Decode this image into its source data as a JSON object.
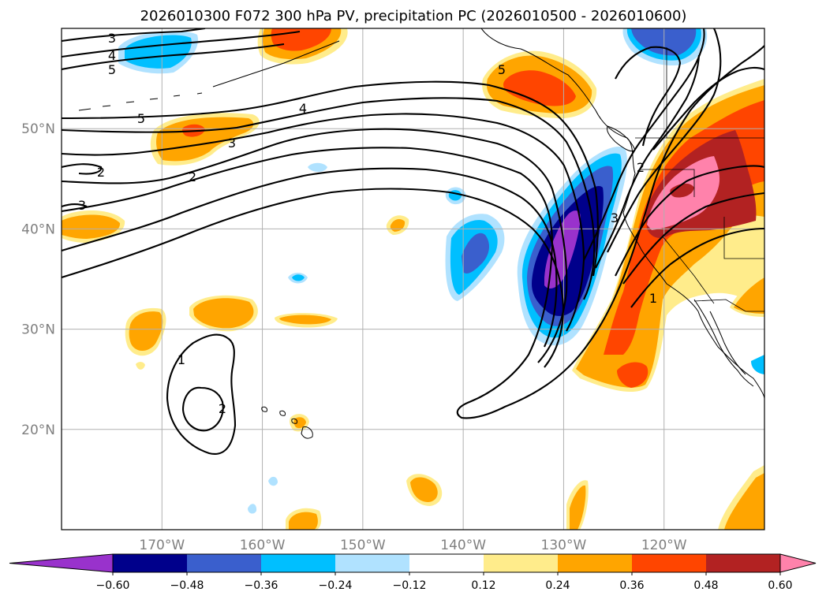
{
  "chart_data": {
    "type": "map-contour",
    "title": "2026010300 F072 300 hPa PV, precipitation PC (2026010500 - 2026010600)",
    "projection": "PlateCarree",
    "extent": {
      "lon_min": -180,
      "lon_max": -110,
      "lat_min": 10,
      "lat_max": 60
    },
    "grid": true,
    "lat_labels": [
      "20°N",
      "30°N",
      "40°N",
      "50°N"
    ],
    "lat_values": [
      20,
      30,
      40,
      50
    ],
    "lon_labels": [
      "170°W",
      "160°W",
      "150°W",
      "140°W",
      "130°W",
      "120°W"
    ],
    "lon_values": [
      -170,
      -160,
      -150,
      -140,
      -130,
      -120
    ],
    "colorbar": {
      "orientation": "horizontal",
      "extend": "both",
      "tick_labels": [
        "−0.60",
        "−0.48",
        "−0.36",
        "−0.24",
        "−0.12",
        "0.12",
        "0.24",
        "0.36",
        "0.48",
        "0.60"
      ],
      "levels": [
        -0.6,
        -0.48,
        -0.36,
        -0.24,
        -0.12,
        0.12,
        0.24,
        0.36,
        0.48,
        0.6
      ],
      "colors": [
        "#9932cc",
        "#00008b",
        "#3a5fcd",
        "#00bfff",
        "#b0e2ff",
        "#ffffff",
        "#ffec8b",
        "#ffa500",
        "#ff4500",
        "#b22222",
        "#ff82ab"
      ]
    },
    "contour_labels": [
      "1",
      "2",
      "3",
      "4",
      "5"
    ],
    "pv_contour_levels": [
      1,
      2,
      3,
      4,
      5
    ]
  }
}
